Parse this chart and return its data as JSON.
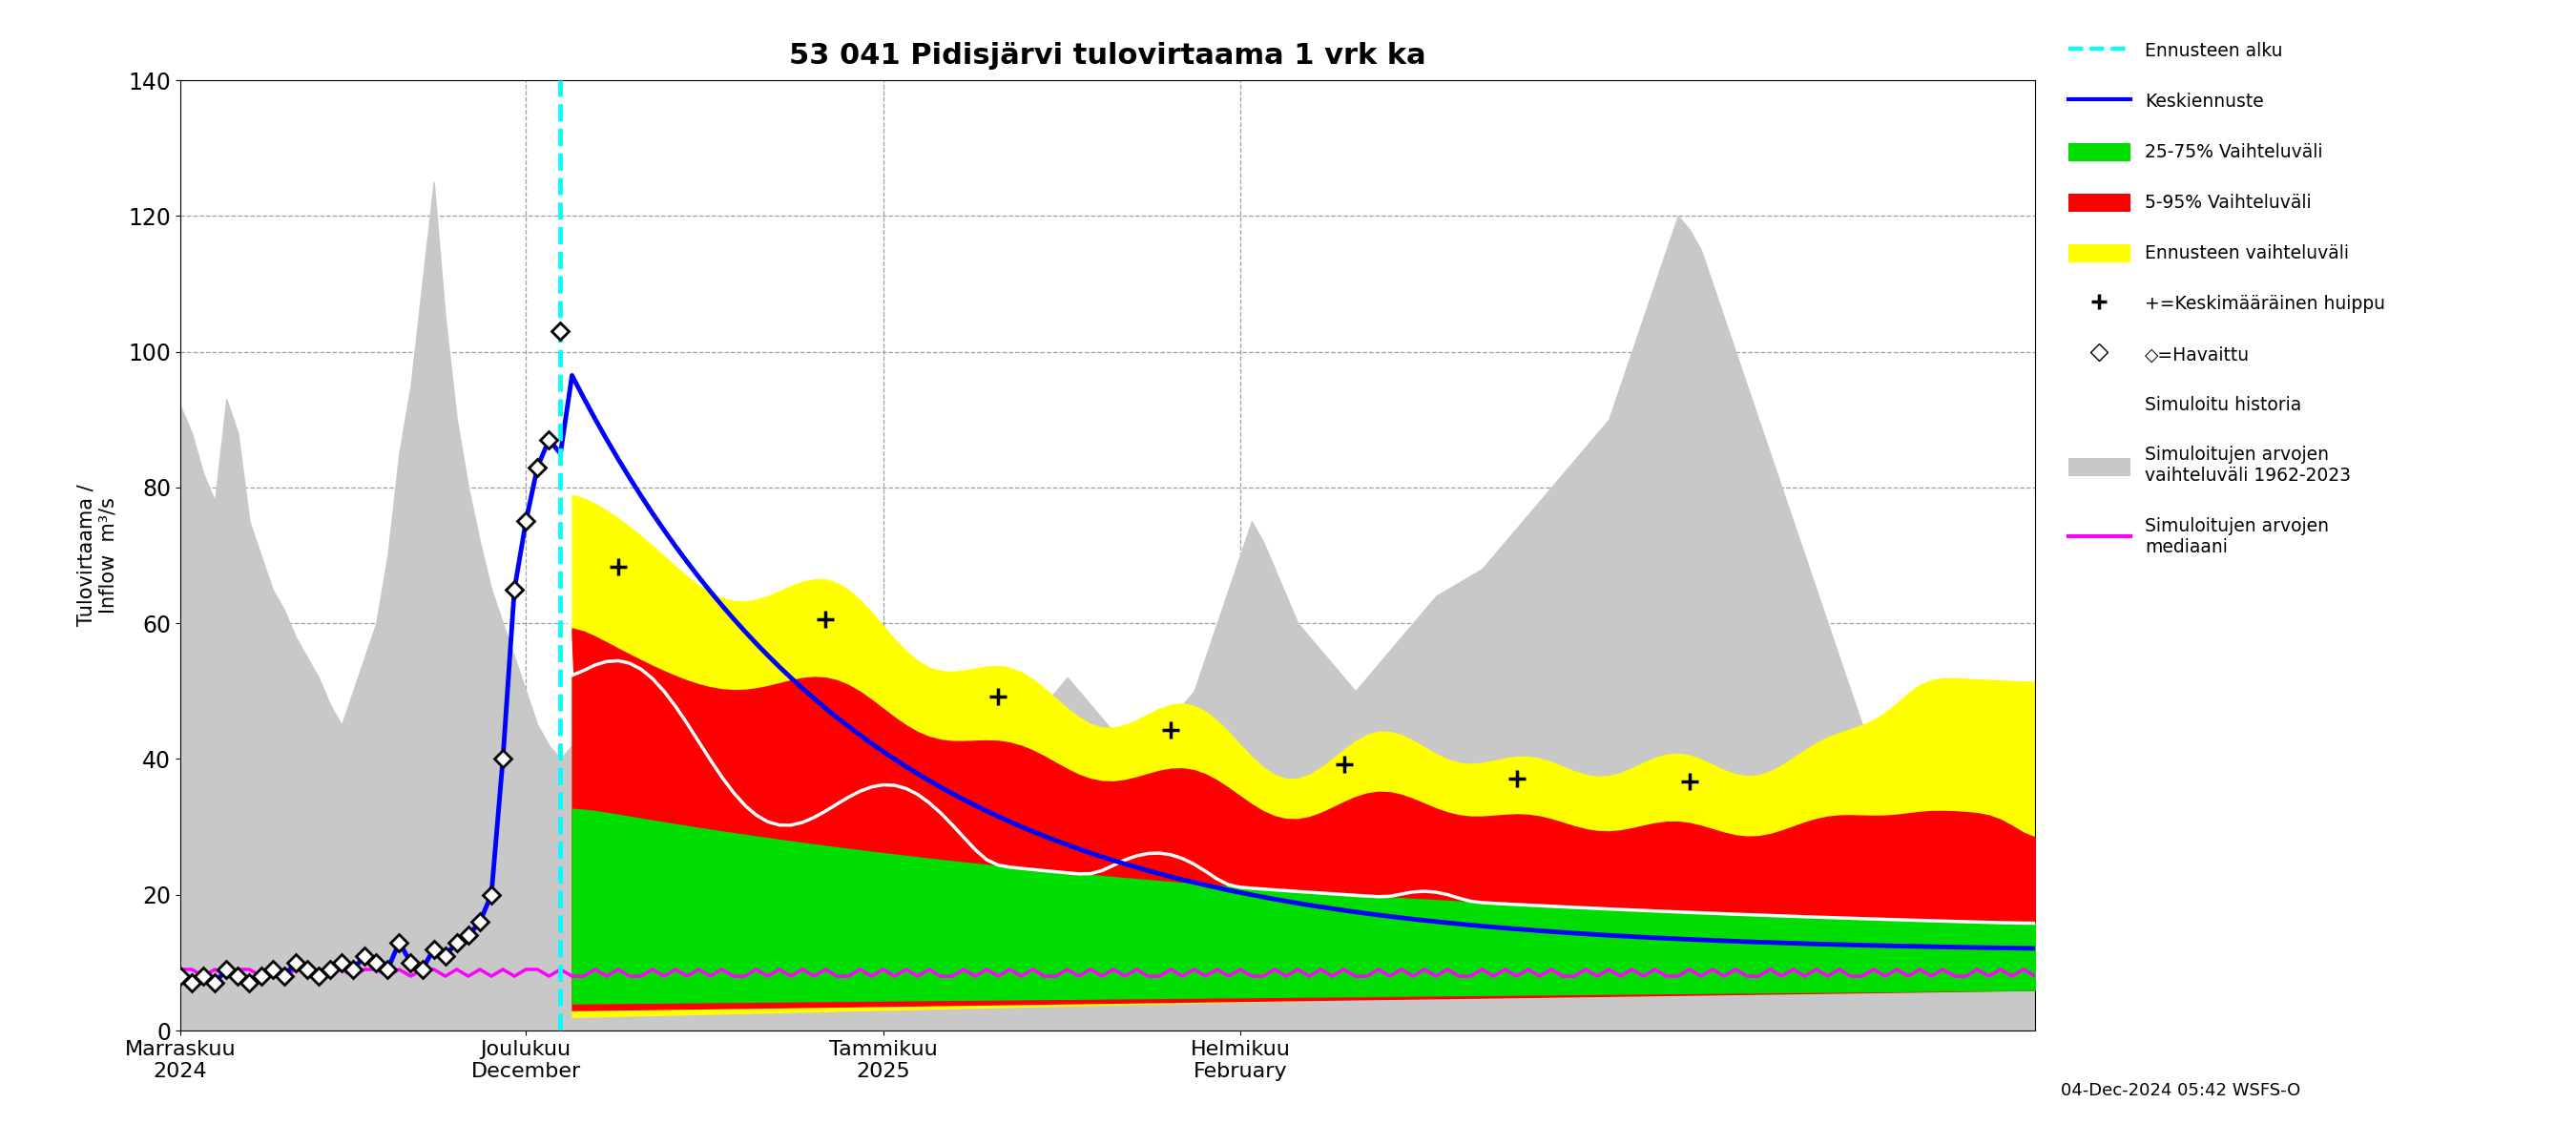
{
  "title": "53 041 Pidisjärvi tulovirtaama 1 vrk ka",
  "ylabel_left": "Tulovirtaama /\nInflow  m³/s",
  "ylim": [
    0,
    140
  ],
  "yticks": [
    0,
    20,
    40,
    60,
    80,
    100,
    120,
    140
  ],
  "footnote": "04-Dec-2024 05:42 WSFS-O",
  "colors": {
    "gray_band": "#c8c8c8",
    "yellow_band": "#ffff00",
    "red_band": "#ff0000",
    "green_band": "#00dd00",
    "blue_line": "#0000ff",
    "white_line": "#ffffff",
    "magenta_line": "#ff00ff",
    "cyan_dashed": "#00ffff"
  },
  "gray_pre_upper": [
    92,
    88,
    82,
    78,
    93,
    88,
    75,
    70,
    65,
    62,
    58,
    55,
    52,
    48,
    45,
    50,
    55,
    60,
    70,
    85,
    95,
    110,
    125,
    105,
    90,
    80,
    72,
    65,
    60,
    55,
    50,
    45,
    42,
    40
  ],
  "gray_pre_lower": [
    0,
    0,
    0,
    0,
    0,
    0,
    0,
    0,
    0,
    0,
    0,
    0,
    0,
    0,
    0,
    0,
    0,
    0,
    0,
    0,
    0,
    0,
    0,
    0,
    0,
    0,
    0,
    0,
    0,
    0,
    0,
    0,
    0,
    0
  ],
  "gray_post_upper": [
    42,
    40,
    38,
    36,
    35,
    34,
    33,
    32,
    31,
    30,
    32,
    34,
    36,
    38,
    40,
    42,
    44,
    46,
    45,
    44,
    43,
    42,
    41,
    40,
    42,
    44,
    46,
    48,
    50,
    52,
    50,
    48,
    46,
    44,
    42,
    40,
    38,
    40,
    42,
    44,
    46,
    48,
    50,
    52,
    50,
    48,
    46,
    44,
    42,
    40,
    42,
    44,
    46,
    48,
    50,
    55,
    60,
    65,
    70,
    75,
    72,
    68,
    64,
    60,
    58,
    56,
    54,
    52,
    50,
    52,
    54,
    56,
    58,
    60,
    62,
    64,
    65,
    66,
    67,
    68,
    70,
    72,
    74,
    76,
    78,
    80,
    82,
    84,
    86,
    88,
    90,
    95,
    100,
    105,
    110,
    115,
    120,
    118,
    115,
    110,
    105,
    100,
    95,
    90,
    85,
    80,
    75,
    70,
    65,
    60,
    55,
    50,
    45,
    40,
    38,
    36,
    34,
    32,
    30,
    28,
    26,
    24,
    22,
    20,
    18,
    16,
    15,
    14
  ],
  "gray_post_lower": [
    0,
    0,
    0,
    0,
    0,
    0,
    0,
    0,
    0,
    0,
    0,
    0,
    0,
    0,
    0,
    0,
    0,
    0,
    0,
    0,
    0,
    0,
    0,
    0,
    0,
    0,
    0,
    0,
    0,
    0,
    0,
    0,
    0,
    0,
    0,
    0,
    0,
    0,
    0,
    0,
    0,
    0,
    0,
    0,
    0,
    0,
    0,
    0,
    0,
    0,
    0,
    0,
    0,
    0,
    0,
    0,
    0,
    0,
    0,
    0,
    0,
    0,
    0,
    0,
    0,
    0,
    0,
    0,
    0,
    0,
    0,
    0,
    0,
    0,
    0,
    0,
    0,
    0,
    0,
    0,
    0,
    0,
    0,
    0,
    0,
    0,
    0,
    0,
    0,
    0,
    0,
    0,
    0,
    0,
    0,
    0,
    0,
    0,
    0,
    0,
    0,
    0,
    0,
    0,
    0,
    0,
    0,
    0,
    0,
    0,
    0,
    0,
    0,
    0,
    0,
    0,
    0,
    0,
    0,
    0,
    0,
    0,
    0,
    0,
    0,
    0,
    0,
    0
  ],
  "obs_days": [
    0,
    1,
    2,
    3,
    4,
    5,
    6,
    7,
    8,
    9,
    10,
    11,
    12,
    13,
    14,
    15,
    16,
    17,
    18,
    19,
    20,
    21,
    22,
    23,
    24,
    25,
    26,
    27,
    28,
    29,
    30,
    31,
    32,
    33
  ],
  "obs_vals": [
    8,
    7,
    8,
    7,
    9,
    8,
    7,
    8,
    9,
    8,
    10,
    9,
    8,
    9,
    10,
    9,
    11,
    10,
    9,
    13,
    10,
    9,
    12,
    11,
    13,
    14,
    16,
    20,
    40,
    65,
    75,
    83,
    87,
    103
  ],
  "blue_pre": [
    8,
    7,
    8,
    7,
    9,
    8,
    7,
    8,
    9,
    8,
    10,
    9,
    8,
    9,
    10,
    9,
    11,
    10,
    9,
    13,
    10,
    9,
    12,
    11,
    13,
    14,
    16,
    20,
    40,
    65,
    75,
    83,
    87,
    85
  ],
  "magenta_vals": [
    9,
    9,
    8,
    9,
    8,
    9,
    9,
    8,
    9,
    8,
    9,
    9,
    8,
    9,
    9,
    8,
    9,
    9,
    8,
    9,
    8,
    9,
    9,
    8,
    9,
    8,
    9,
    8,
    9,
    8,
    9,
    9,
    8,
    9,
    8,
    8,
    9,
    8,
    9,
    8,
    8,
    9,
    8,
    9,
    8,
    9,
    8,
    9,
    8,
    8,
    9,
    8,
    9,
    8,
    9,
    8,
    9,
    8,
    8,
    9,
    8,
    9,
    8,
    9,
    8,
    9,
    8,
    8,
    9,
    8,
    9,
    8,
    9,
    8,
    9,
    8,
    8,
    9,
    8,
    9,
    8,
    9,
    8,
    9,
    8,
    8,
    9,
    8,
    9,
    8,
    9,
    8,
    9,
    8,
    8,
    9,
    8,
    9,
    8,
    9,
    8,
    9,
    8,
    8,
    9,
    8,
    9,
    8,
    9,
    8,
    9,
    8,
    8,
    9,
    8,
    9,
    8,
    9,
    8,
    9,
    8,
    8,
    9,
    8,
    9,
    8,
    9,
    8,
    9,
    8,
    8,
    9,
    8,
    9,
    8,
    9,
    8,
    8,
    9,
    8,
    9,
    8,
    9,
    8,
    9,
    8,
    8,
    9,
    8,
    9,
    8,
    9,
    8,
    9,
    8,
    8,
    9,
    8,
    9,
    8,
    9,
    8
  ]
}
